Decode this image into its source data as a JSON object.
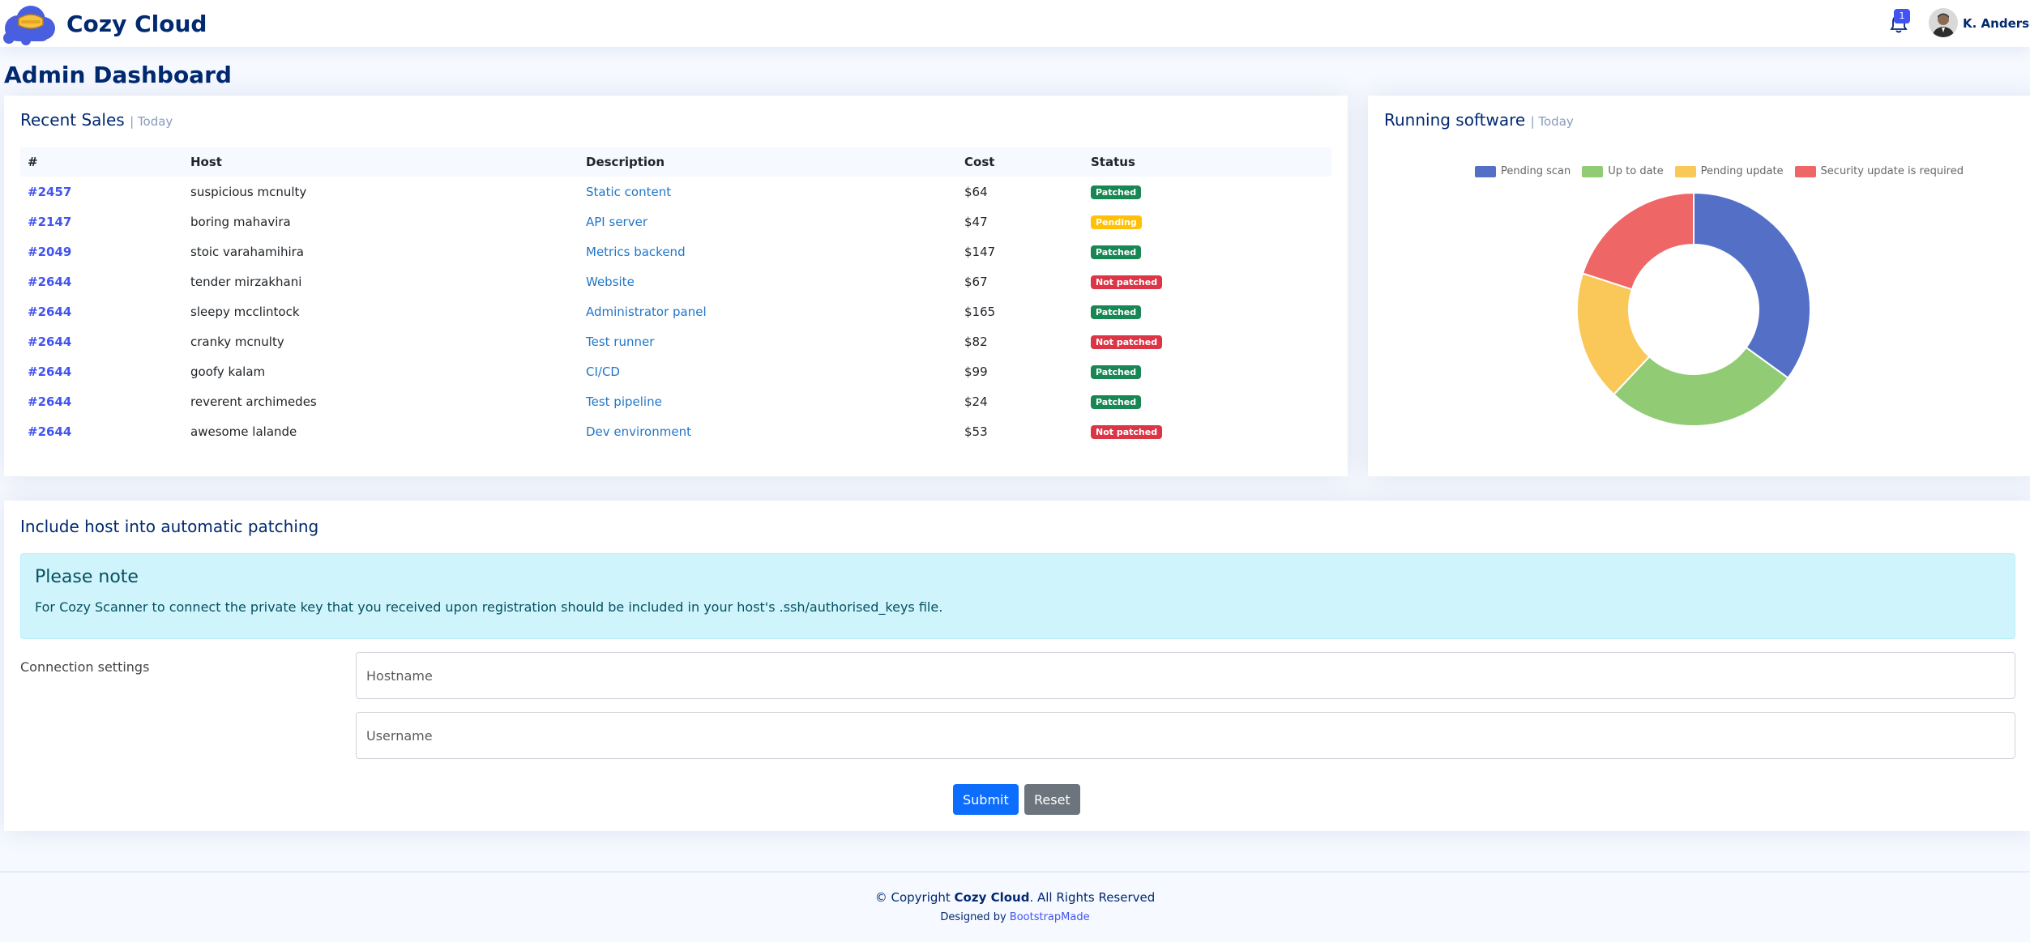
{
  "header": {
    "app_name": "Cozy Cloud",
    "notification_count": "1",
    "user_name": "K. Anderson"
  },
  "page": {
    "title": "Admin Dashboard"
  },
  "recent_sales": {
    "title": "Recent Sales",
    "subtitle": "| Today",
    "columns": [
      "#",
      "Host",
      "Description",
      "Cost",
      "Status"
    ],
    "rows": [
      {
        "id": "#2457",
        "host": "suspicious mcnulty",
        "description": "Static content",
        "cost": "$64",
        "status": "Patched"
      },
      {
        "id": "#2147",
        "host": "boring mahavira",
        "description": "API server",
        "cost": "$47",
        "status": "Pending"
      },
      {
        "id": "#2049",
        "host": "stoic varahamihira",
        "description": "Metrics backend",
        "cost": "$147",
        "status": "Patched"
      },
      {
        "id": "#2644",
        "host": "tender mirzakhani",
        "description": "Website",
        "cost": "$67",
        "status": "Not patched"
      },
      {
        "id": "#2644",
        "host": "sleepy mcclintock",
        "description": "Administrator panel",
        "cost": "$165",
        "status": "Patched"
      },
      {
        "id": "#2644",
        "host": "cranky mcnulty",
        "description": "Test runner",
        "cost": "$82",
        "status": "Not patched"
      },
      {
        "id": "#2644",
        "host": "goofy kalam",
        "description": "CI/CD",
        "cost": "$99",
        "status": "Patched"
      },
      {
        "id": "#2644",
        "host": "reverent archimedes",
        "description": "Test pipeline",
        "cost": "$24",
        "status": "Patched"
      },
      {
        "id": "#2644",
        "host": "awesome lalande",
        "description": "Dev environment",
        "cost": "$53",
        "status": "Not patched"
      }
    ]
  },
  "running_software": {
    "title": "Running software",
    "subtitle": "| Today"
  },
  "chart_data": {
    "type": "pie",
    "donut": true,
    "categories": [
      "Pending scan",
      "Up to date",
      "Pending update",
      "Security update is required"
    ],
    "values": [
      35,
      27,
      18,
      20
    ],
    "colors": [
      "#5470c6",
      "#91cc75",
      "#fac858",
      "#ee6666"
    ],
    "legend_position": "top"
  },
  "patching_form": {
    "title": "Include host into automatic patching",
    "alert_heading": "Please note",
    "alert_text": "For Cozy Scanner to connect the private key that you received upon registration should be included in your host's .ssh/authorised_keys file.",
    "connection_label": "Connection settings",
    "hostname_placeholder": "Hostname",
    "username_placeholder": "Username",
    "submit_label": "Submit",
    "reset_label": "Reset"
  },
  "footer": {
    "copyright_prefix": "© Copyright",
    "copyright_brand": "Cozy Cloud",
    "copyright_suffix": ". All Rights Reserved",
    "designed_prefix": "Designed by",
    "designed_link": "BootstrapMade"
  }
}
